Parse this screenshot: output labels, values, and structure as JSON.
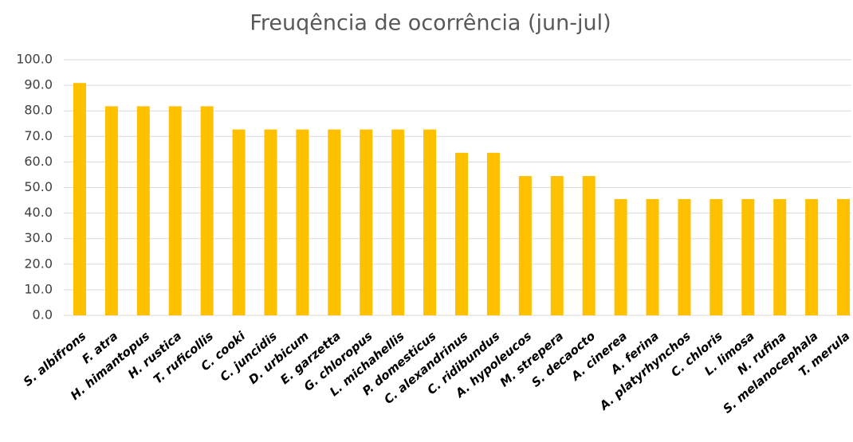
{
  "chart_data": {
    "type": "bar",
    "title": "Freuqência de ocorrência (jun-jul)",
    "categories": [
      "S. albifrons",
      "F. atra",
      "H. himantopus",
      "H. rustica",
      "T. ruficollis",
      "C. cooki",
      "C. juncidis",
      "D. urbicum",
      "E. garzetta",
      "G. chloropus",
      "L. michahellis",
      "P. domesticus",
      "C. alexandrinus",
      "C. ridibundus",
      "A. hypoleucos",
      "M. strepera",
      "S. decaocto",
      "A. cinerea",
      "A. ferina",
      "A. platyrhynchos",
      "C. chloris",
      "L. limosa",
      "N. rufina",
      "S. melanocephala",
      "T. merula"
    ],
    "values": [
      90.9,
      81.8,
      81.8,
      81.8,
      81.8,
      72.7,
      72.7,
      72.7,
      72.7,
      72.7,
      72.7,
      72.7,
      63.6,
      63.6,
      54.5,
      54.5,
      54.5,
      45.5,
      45.5,
      45.5,
      45.5,
      45.5,
      45.5,
      45.5,
      45.5
    ],
    "color": "#ffc000",
    "ylim": [
      0,
      100
    ],
    "yticks": [
      {
        "value": 0,
        "label": "0.0"
      },
      {
        "value": 10,
        "label": "10.0"
      },
      {
        "value": 20,
        "label": "20.0"
      },
      {
        "value": 30,
        "label": "30.0"
      },
      {
        "value": 40,
        "label": "40.0"
      },
      {
        "value": 50,
        "label": "50.0"
      },
      {
        "value": 60,
        "label": "60.0"
      },
      {
        "value": 70,
        "label": "70.0"
      },
      {
        "value": 80,
        "label": "80.0"
      },
      {
        "value": 90,
        "label": "90.0"
      },
      {
        "value": 100,
        "label": "100.0"
      }
    ],
    "grid": true
  }
}
